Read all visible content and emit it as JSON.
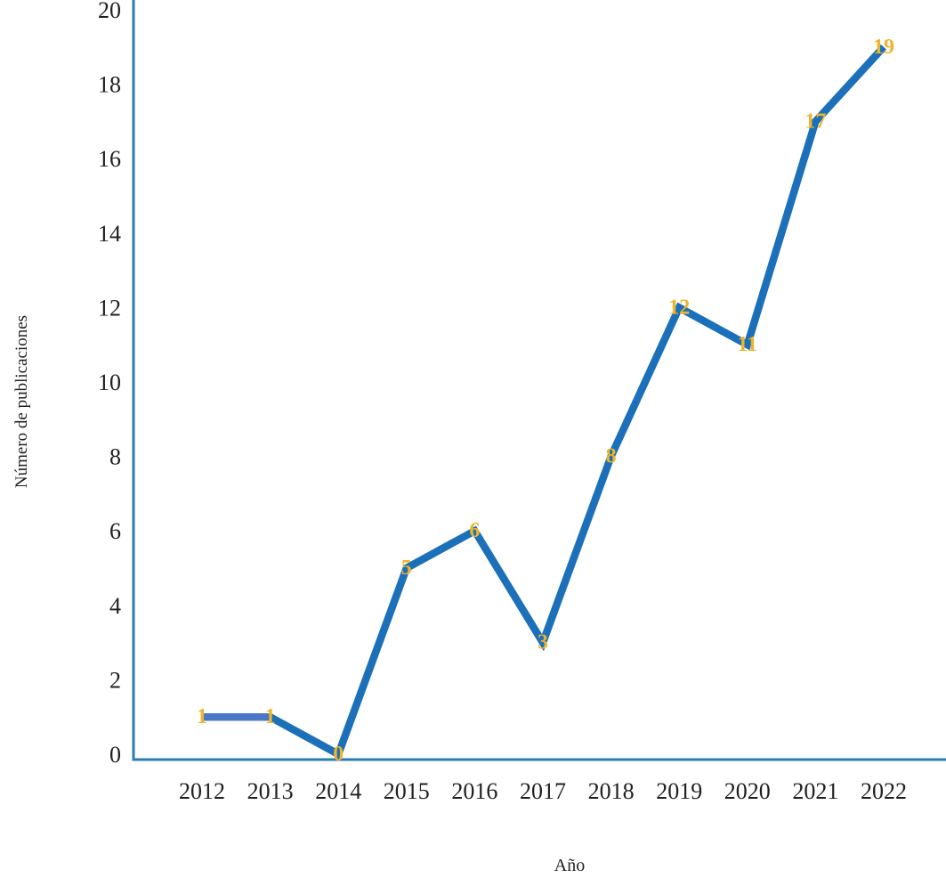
{
  "chart_data": {
    "type": "line",
    "title": "",
    "xlabel": "Año",
    "ylabel": "Número de publicaciones",
    "categories": [
      "2012",
      "2013",
      "2014",
      "2015",
      "2016",
      "2017",
      "2018",
      "2019",
      "2020",
      "2021",
      "2022"
    ],
    "series": [
      {
        "name": "Número de publicaciones",
        "values": [
          1,
          1,
          0,
          5,
          6,
          3,
          8,
          12,
          11,
          17,
          19
        ],
        "data_labels": [
          "1",
          "1",
          "0",
          "5",
          "6",
          "3",
          "8",
          "12",
          "11",
          "17",
          "19"
        ],
        "line_color": "#1c70ba",
        "first_segment_color": "#4a76c5",
        "label_color": "#efb42a"
      }
    ],
    "ylim": [
      0,
      20
    ],
    "y_ticks": [
      0,
      2,
      4,
      6,
      8,
      10,
      12,
      14,
      16,
      18,
      20
    ],
    "grid": false,
    "legend_position": "none",
    "axis_color": "#2b7cb0",
    "tick_label_color": "#1f1f1f",
    "data_labels_shown": true
  }
}
